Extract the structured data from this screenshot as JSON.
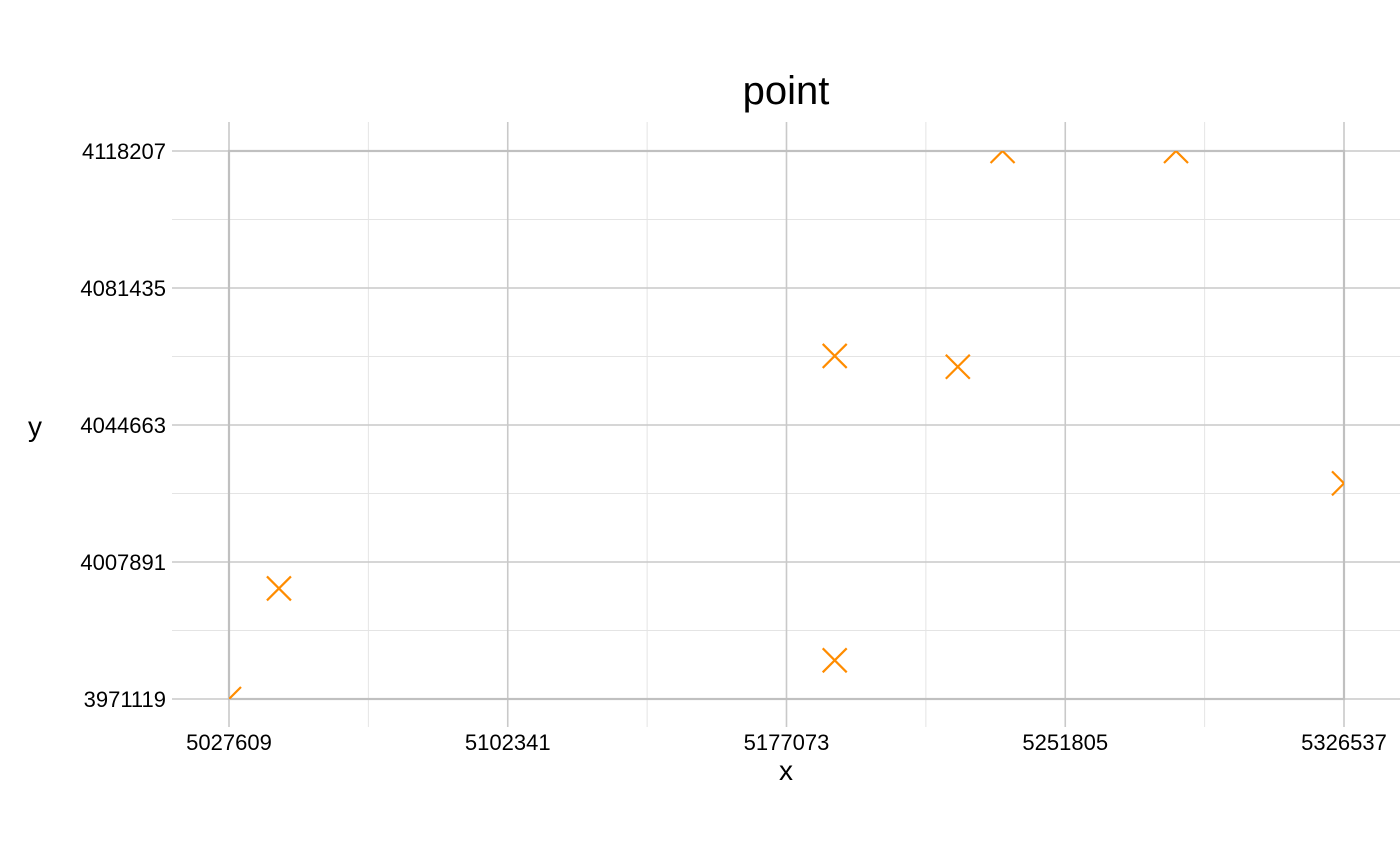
{
  "chart_data": {
    "type": "scatter",
    "title": "point",
    "xlabel": "x",
    "ylabel": "y",
    "xlim": [
      5027609,
      5326537
    ],
    "ylim": [
      3971119,
      4118207
    ],
    "x_ticks": [
      "5027609",
      "5102341",
      "5177073",
      "5251805",
      "5326537"
    ],
    "y_ticks": [
      "3971119",
      "4007891",
      "4044663",
      "4081435",
      "4118207"
    ],
    "grid": true,
    "legend": "none",
    "marker": "x",
    "marker_color": "#FF8C00",
    "points": [
      {
        "x": 5027609,
        "y": 3971119
      },
      {
        "x": 5041000,
        "y": 4000800
      },
      {
        "x": 5190000,
        "y": 3981500
      },
      {
        "x": 5190000,
        "y": 4063200
      },
      {
        "x": 5223000,
        "y": 4060300
      },
      {
        "x": 5235000,
        "y": 4118207
      },
      {
        "x": 5281500,
        "y": 4118207
      },
      {
        "x": 5326537,
        "y": 4029000
      }
    ]
  }
}
